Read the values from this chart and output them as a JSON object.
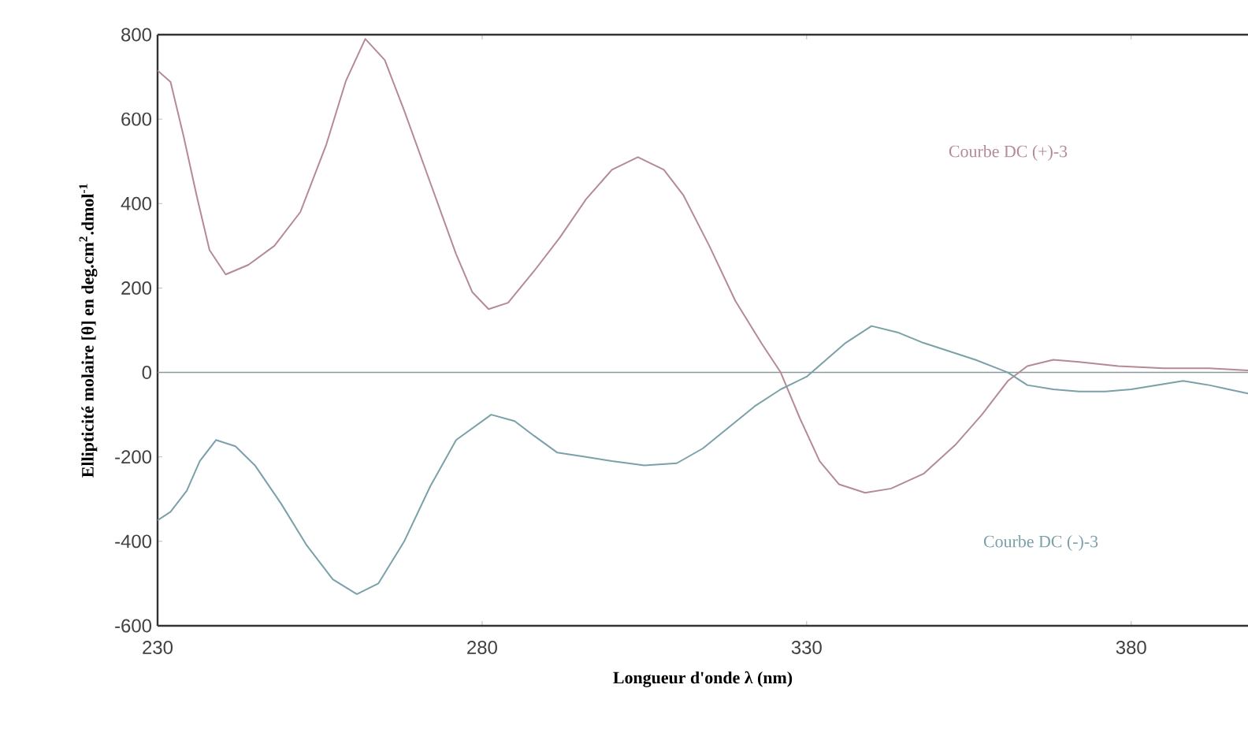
{
  "chart_data": {
    "type": "line",
    "xlabel": "Longueur d'onde λ (nm)",
    "ylabel": "Ellipticité molaire [θ] en deg.cm$^{2}$.dmol$^{-1}$",
    "xlim": [
      230,
      398
    ],
    "xticks": [
      230,
      280,
      330,
      380
    ],
    "ylim": [
      -600,
      800
    ],
    "yticks": [
      -600,
      -400,
      -200,
      0,
      200,
      400,
      600,
      800
    ],
    "grid": false,
    "legend": false,
    "marker": "none",
    "line_style": "solid",
    "ref_lines": [
      {
        "axis": "y",
        "value": 0,
        "color": "#8a9a9c"
      }
    ],
    "series": [
      {
        "name": "Courbe DC (+)-3",
        "color": "#b48a95",
        "x": [
          230,
          232,
          234,
          236,
          238,
          240.5,
          244,
          248,
          252,
          256,
          259,
          262,
          265,
          268,
          272,
          276,
          278.5,
          281,
          284,
          288,
          292,
          296,
          300,
          304,
          308,
          311,
          315,
          319,
          323,
          326,
          329,
          332,
          335,
          339,
          343,
          348,
          353,
          357,
          361,
          364,
          368,
          372,
          378,
          385,
          392,
          398
        ],
        "values": [
          715,
          688,
          560,
          420,
          290,
          232,
          255,
          300,
          380,
          540,
          690,
          790,
          740,
          620,
          450,
          280,
          190,
          150,
          165,
          240,
          320,
          410,
          480,
          510,
          480,
          420,
          300,
          170,
          70,
          0,
          -110,
          -210,
          -265,
          -285,
          -275,
          -240,
          -170,
          -100,
          -20,
          15,
          30,
          25,
          15,
          10,
          10,
          5
        ]
      },
      {
        "name": "Courbe DC (-)-3",
        "color": "#7aa0a8",
        "x": [
          230,
          232,
          234.5,
          236.5,
          239,
          242,
          245,
          249,
          253,
          257,
          260.7,
          264,
          268,
          272,
          276,
          281.4,
          285,
          288,
          291.6,
          296,
          300,
          305,
          310,
          314,
          318,
          322,
          326,
          330,
          333,
          336,
          340,
          344,
          348,
          352,
          356,
          361,
          364,
          368,
          372,
          376,
          380,
          384,
          388,
          392,
          395,
          398
        ],
        "values": [
          -350,
          -330,
          -280,
          -210,
          -160,
          -175,
          -220,
          -310,
          -410,
          -490,
          -525,
          -500,
          -400,
          -270,
          -160,
          -100,
          -115,
          -150,
          -190,
          -200,
          -210,
          -220,
          -215,
          -180,
          -130,
          -80,
          -40,
          -10,
          30,
          70,
          110,
          95,
          70,
          50,
          30,
          0,
          -30,
          -40,
          -45,
          -45,
          -40,
          -30,
          -20,
          -30,
          -40,
          -50
        ]
      }
    ]
  }
}
